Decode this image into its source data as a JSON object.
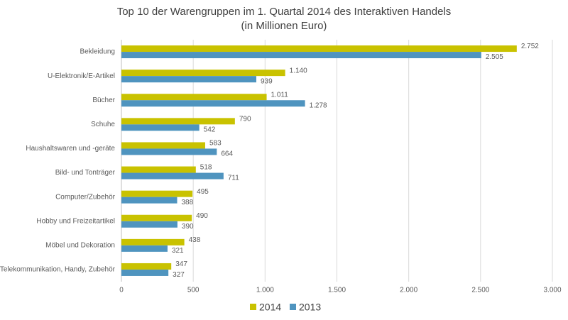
{
  "chart_data": {
    "type": "bar",
    "orientation": "horizontal",
    "title": "Top 10 der Warengruppen im 1. Quartal 2014 des Interaktiven Handels",
    "subtitle": "(in Millionen Euro)",
    "categories": [
      "Bekleidung",
      "U-Elektronik/E-Artikel",
      "Bücher",
      "Schuhe",
      "Haushaltswaren und -geräte",
      "Bild- und Tonträger",
      "Computer/Zubehör",
      "Hobby und Freizeitartikel",
      "Möbel und Dekoration",
      "Telekommunikation, Handy, Zubehör"
    ],
    "series": [
      {
        "name": "2014",
        "color": "#c9c200",
        "values": [
          2752,
          1140,
          1011,
          790,
          583,
          518,
          495,
          490,
          438,
          347
        ],
        "value_labels": [
          "2.752",
          "1.140",
          "1.011",
          "790",
          "583",
          "518",
          "495",
          "490",
          "438",
          "347"
        ]
      },
      {
        "name": "2013",
        "color": "#4f94bf",
        "values": [
          2505,
          939,
          1278,
          542,
          664,
          711,
          388,
          390,
          321,
          327
        ],
        "value_labels": [
          "2.505",
          "939",
          "1.278",
          "542",
          "664",
          "711",
          "388",
          "390",
          "321",
          "327"
        ]
      }
    ],
    "xlim": [
      0,
      3000
    ],
    "xticks": [
      0,
      500,
      {
        "value": 1000,
        "label": "1.000"
      },
      {
        "value": 1500,
        "label": "1.500"
      },
      {
        "value": 2000,
        "label": "2.000"
      },
      {
        "value": 2500,
        "label": "2.500"
      },
      {
        "value": 3000,
        "label": "3.000"
      }
    ],
    "grid": true,
    "legend": "bottom"
  }
}
